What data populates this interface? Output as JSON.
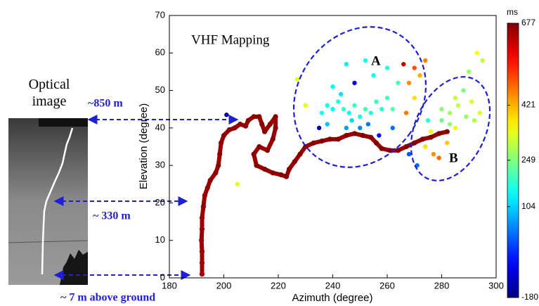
{
  "figure": {
    "optical_label": "Optical image",
    "distance_labels": [
      "~850 m",
      "~ 330 m",
      "~ 7 m above ground"
    ]
  },
  "chart_data": {
    "type": "scatter",
    "xlabel": "Azimuth (degree)",
    "ylabel": "Elevation (degree)",
    "annotations": [
      "VHF Mapping",
      "A",
      "B"
    ],
    "xlim": [
      180,
      300
    ],
    "xticks": [
      180,
      200,
      220,
      240,
      260,
      280,
      300
    ],
    "ylim": [
      0,
      70
    ],
    "yticks": [
      0,
      10,
      20,
      30,
      40,
      50,
      60,
      70
    ],
    "colormap": "jet",
    "colorbar": {
      "label": "ms",
      "clim": [
        -180,
        677
      ],
      "ticks": [
        -180,
        104,
        249,
        421,
        677
      ]
    },
    "track": {
      "x": [
        192,
        192,
        192,
        191.8,
        192,
        192,
        192.5,
        193,
        194,
        195,
        197,
        198,
        198.5,
        199,
        200,
        202,
        204,
        206,
        208,
        209,
        211,
        213,
        214,
        215,
        217,
        219,
        219,
        218,
        216,
        213,
        211,
        212,
        215,
        218,
        221,
        223,
        224,
        226,
        228,
        230,
        233,
        236,
        239,
        242,
        245,
        248,
        251,
        254,
        256,
        258,
        261,
        264,
        267,
        270,
        273,
        276,
        279,
        282
      ],
      "y": [
        1,
        4,
        7,
        10,
        13,
        16,
        19,
        22,
        24,
        26,
        28,
        30,
        33,
        36,
        38,
        39.5,
        40,
        41,
        40.5,
        42,
        43,
        43,
        41,
        39,
        41,
        43,
        40,
        37,
        34,
        35,
        33,
        30,
        29,
        28,
        27.5,
        27,
        29,
        31,
        33,
        35,
        36,
        36.5,
        37,
        37,
        38,
        38.5,
        38,
        37.5,
        36,
        34.5,
        34,
        34,
        35,
        36,
        37,
        37.5,
        38.5,
        39
      ],
      "c": [
        640,
        645,
        650,
        650,
        655,
        655,
        660,
        660,
        660,
        662,
        662,
        664,
        664,
        665,
        665,
        666,
        666,
        667,
        667,
        668,
        668,
        668,
        669,
        669,
        669,
        670,
        670,
        670,
        670,
        671,
        671,
        671,
        672,
        672,
        672,
        672,
        673,
        673,
        673,
        673,
        674,
        674,
        674,
        674,
        675,
        675,
        675,
        675,
        675,
        676,
        676,
        676,
        676,
        676,
        677,
        677,
        677,
        677
      ]
    },
    "scatter_points": {
      "x": [
        236,
        238,
        240,
        242,
        244,
        246,
        248,
        250,
        252,
        254,
        256,
        258,
        243,
        247,
        238,
        245,
        250,
        253,
        240,
        260,
        262,
        255,
        260,
        264,
        248,
        252,
        245,
        235,
        257,
        262,
        268,
        270,
        272,
        267,
        270,
        274,
        266,
        280,
        283,
        286,
        289,
        292,
        285,
        288,
        291,
        294,
        280,
        283,
        277,
        279,
        274,
        276,
        282,
        285,
        293,
        295,
        290,
        271,
        268,
        275,
        230,
        227,
        201,
        205
      ],
      "y": [
        44,
        46,
        45,
        47,
        45,
        44,
        46,
        43,
        45,
        44,
        47,
        45,
        49,
        42,
        41,
        40,
        40,
        41,
        51,
        48,
        45,
        54,
        56,
        52,
        52,
        58,
        57,
        40,
        38,
        40,
        52,
        56,
        54,
        44,
        48,
        58,
        57,
        45,
        44,
        46,
        43,
        42,
        48,
        50,
        47,
        44,
        42,
        41,
        33,
        32,
        35,
        39,
        36,
        40,
        60,
        58,
        55,
        30,
        33,
        42,
        46,
        53,
        43.5,
        25
      ],
      "c": [
        150,
        160,
        140,
        170,
        180,
        150,
        190,
        160,
        200,
        170,
        190,
        180,
        120,
        110,
        90,
        60,
        40,
        30,
        140,
        200,
        210,
        150,
        170,
        200,
        -100,
        150,
        130,
        -120,
        -60,
        20,
        450,
        500,
        420,
        470,
        380,
        460,
        620,
        260,
        280,
        300,
        270,
        290,
        310,
        250,
        330,
        320,
        240,
        260,
        450,
        480,
        380,
        340,
        400,
        340,
        350,
        300,
        270,
        20,
        0,
        180,
        330,
        330,
        -170,
        330
      ]
    }
  }
}
